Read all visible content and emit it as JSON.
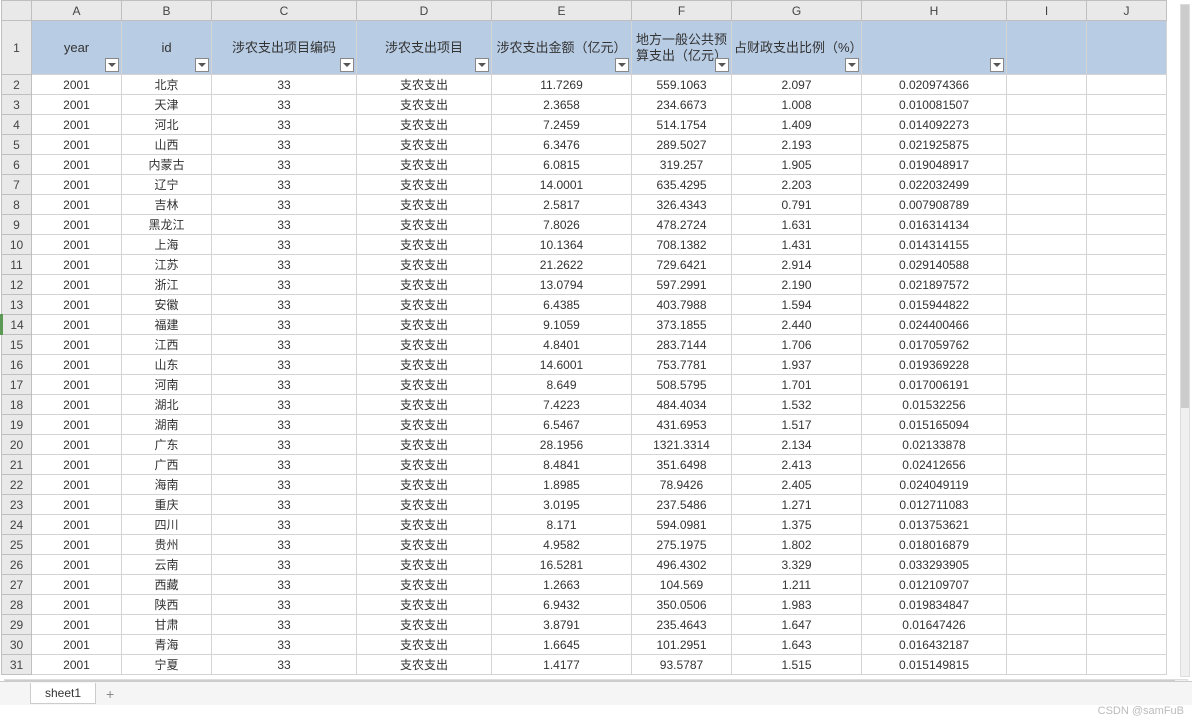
{
  "columns_letters": [
    "A",
    "B",
    "C",
    "D",
    "E",
    "F",
    "G",
    "H",
    "I",
    "J"
  ],
  "col_classes": [
    "colA",
    "colB",
    "colC",
    "colD",
    "colE",
    "colF",
    "colG",
    "colH",
    "colI",
    "colJ"
  ],
  "headers": [
    "year",
    "id",
    "涉农支出项目编码",
    "涉农支出项目",
    "涉农支出金额（亿元）",
    "地方一般公共预算支出（亿元）",
    "占财政支出比例（%）",
    ""
  ],
  "selected_row": 14,
  "rows": [
    [
      "2001",
      "北京",
      "33",
      "支农支出",
      "11.7269",
      "559.1063",
      "2.097",
      "0.020974366"
    ],
    [
      "2001",
      "天津",
      "33",
      "支农支出",
      "2.3658",
      "234.6673",
      "1.008",
      "0.010081507"
    ],
    [
      "2001",
      "河北",
      "33",
      "支农支出",
      "7.2459",
      "514.1754",
      "1.409",
      "0.014092273"
    ],
    [
      "2001",
      "山西",
      "33",
      "支农支出",
      "6.3476",
      "289.5027",
      "2.193",
      "0.021925875"
    ],
    [
      "2001",
      "内蒙古",
      "33",
      "支农支出",
      "6.0815",
      "319.257",
      "1.905",
      "0.019048917"
    ],
    [
      "2001",
      "辽宁",
      "33",
      "支农支出",
      "14.0001",
      "635.4295",
      "2.203",
      "0.022032499"
    ],
    [
      "2001",
      "吉林",
      "33",
      "支农支出",
      "2.5817",
      "326.4343",
      "0.791",
      "0.007908789"
    ],
    [
      "2001",
      "黑龙江",
      "33",
      "支农支出",
      "7.8026",
      "478.2724",
      "1.631",
      "0.016314134"
    ],
    [
      "2001",
      "上海",
      "33",
      "支农支出",
      "10.1364",
      "708.1382",
      "1.431",
      "0.014314155"
    ],
    [
      "2001",
      "江苏",
      "33",
      "支农支出",
      "21.2622",
      "729.6421",
      "2.914",
      "0.029140588"
    ],
    [
      "2001",
      "浙江",
      "33",
      "支农支出",
      "13.0794",
      "597.2991",
      "2.190",
      "0.021897572"
    ],
    [
      "2001",
      "安徽",
      "33",
      "支农支出",
      "6.4385",
      "403.7988",
      "1.594",
      "0.015944822"
    ],
    [
      "2001",
      "福建",
      "33",
      "支农支出",
      "9.1059",
      "373.1855",
      "2.440",
      "0.024400466"
    ],
    [
      "2001",
      "江西",
      "33",
      "支农支出",
      "4.8401",
      "283.7144",
      "1.706",
      "0.017059762"
    ],
    [
      "2001",
      "山东",
      "33",
      "支农支出",
      "14.6001",
      "753.7781",
      "1.937",
      "0.019369228"
    ],
    [
      "2001",
      "河南",
      "33",
      "支农支出",
      "8.649",
      "508.5795",
      "1.701",
      "0.017006191"
    ],
    [
      "2001",
      "湖北",
      "33",
      "支农支出",
      "7.4223",
      "484.4034",
      "1.532",
      "0.01532256"
    ],
    [
      "2001",
      "湖南",
      "33",
      "支农支出",
      "6.5467",
      "431.6953",
      "1.517",
      "0.015165094"
    ],
    [
      "2001",
      "广东",
      "33",
      "支农支出",
      "28.1956",
      "1321.3314",
      "2.134",
      "0.02133878"
    ],
    [
      "2001",
      "广西",
      "33",
      "支农支出",
      "8.4841",
      "351.6498",
      "2.413",
      "0.02412656"
    ],
    [
      "2001",
      "海南",
      "33",
      "支农支出",
      "1.8985",
      "78.9426",
      "2.405",
      "0.024049119"
    ],
    [
      "2001",
      "重庆",
      "33",
      "支农支出",
      "3.0195",
      "237.5486",
      "1.271",
      "0.012711083"
    ],
    [
      "2001",
      "四川",
      "33",
      "支农支出",
      "8.171",
      "594.0981",
      "1.375",
      "0.013753621"
    ],
    [
      "2001",
      "贵州",
      "33",
      "支农支出",
      "4.9582",
      "275.1975",
      "1.802",
      "0.018016879"
    ],
    [
      "2001",
      "云南",
      "33",
      "支农支出",
      "16.5281",
      "496.4302",
      "3.329",
      "0.033293905"
    ],
    [
      "2001",
      "西藏",
      "33",
      "支农支出",
      "1.2663",
      "104.569",
      "1.211",
      "0.012109707"
    ],
    [
      "2001",
      "陕西",
      "33",
      "支农支出",
      "6.9432",
      "350.0506",
      "1.983",
      "0.019834847"
    ],
    [
      "2001",
      "甘肃",
      "33",
      "支农支出",
      "3.8791",
      "235.4643",
      "1.647",
      "0.01647426"
    ],
    [
      "2001",
      "青海",
      "33",
      "支农支出",
      "1.6645",
      "101.2951",
      "1.643",
      "0.016432187"
    ],
    [
      "2001",
      "宁夏",
      "33",
      "支农支出",
      "1.4177",
      "93.5787",
      "1.515",
      "0.015149815"
    ]
  ],
  "sheet_name": "sheet1",
  "add_sheet_label": "+",
  "watermark": "CSDN @samFuB"
}
